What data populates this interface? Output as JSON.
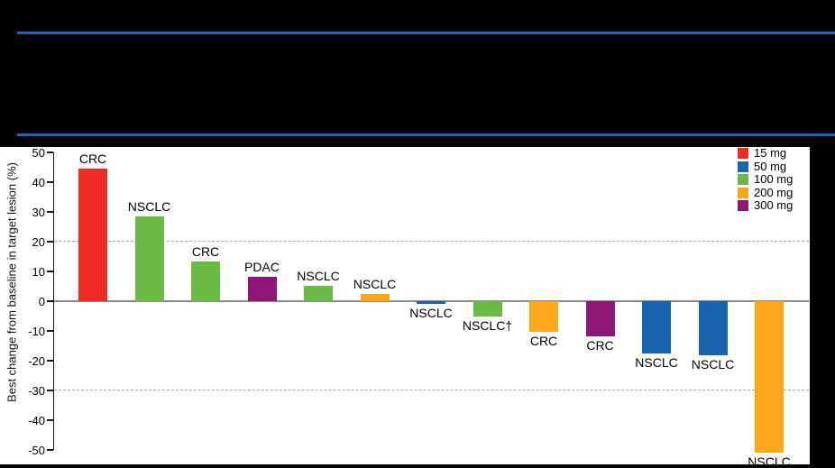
{
  "header": {
    "background": "#000000",
    "rule_top_color": "#2A62AC",
    "rule_bottom_color": "#0E6DB8"
  },
  "chart_data": {
    "type": "bar",
    "subtype": "waterfall",
    "title": "",
    "xlabel": "",
    "ylabel": "Best change from baseline in target lesion (%)",
    "ylim": [
      -50,
      50
    ],
    "yticks": [
      50,
      40,
      30,
      20,
      10,
      0,
      "-10",
      "-20",
      "-30",
      "-40",
      "-50"
    ],
    "ytick_values": [
      50,
      40,
      30,
      20,
      10,
      0,
      -10,
      -20,
      -30,
      -40,
      -50
    ],
    "reference_lines": [
      20,
      -30
    ],
    "grid": "off",
    "legend_position": "top-right",
    "categories": [
      "CRC",
      "NSCLC",
      "CRC",
      "PDAC",
      "NSCLC",
      "NSCLC",
      "NSCLC",
      "NSCLC†",
      "CRC",
      "CRC",
      "NSCLC",
      "NSCLC",
      "NSCLC"
    ],
    "values": [
      44.5,
      28.5,
      13.2,
      8.2,
      5.2,
      2.5,
      -1.0,
      -5.3,
      -10.2,
      -11.8,
      -17.6,
      -18.1,
      -51.0
    ],
    "bars": [
      {
        "label": "CRC",
        "dose": "15 mg",
        "value": 44.5
      },
      {
        "label": "NSCLC",
        "dose": "100 mg",
        "value": 28.5
      },
      {
        "label": "CRC",
        "dose": "100 mg",
        "value": 13.2
      },
      {
        "label": "PDAC",
        "dose": "300 mg",
        "value": 8.2
      },
      {
        "label": "NSCLC",
        "dose": "100 mg",
        "value": 5.2
      },
      {
        "label": "NSCLC",
        "dose": "200 mg",
        "value": 2.5
      },
      {
        "label": "NSCLC",
        "dose": "50 mg",
        "value": -1.0
      },
      {
        "label": "NSCLC†",
        "dose": "100 mg",
        "value": -5.3
      },
      {
        "label": "CRC",
        "dose": "200 mg",
        "value": -10.2
      },
      {
        "label": "CRC",
        "dose": "300 mg",
        "value": -11.8
      },
      {
        "label": "NSCLC",
        "dose": "50 mg",
        "value": -17.6
      },
      {
        "label": "NSCLC",
        "dose": "50 mg",
        "value": -18.1
      },
      {
        "label": "NSCLC",
        "dose": "200 mg",
        "value": -51.0
      }
    ],
    "legend": [
      {
        "label": "15 mg",
        "color": "#EE2C24"
      },
      {
        "label": "50 mg",
        "color": "#1A63AD"
      },
      {
        "label": "100 mg",
        "color": "#6CBA46"
      },
      {
        "label": "200 mg",
        "color": "#FAA71B"
      },
      {
        "label": "300 mg",
        "color": "#8E1677"
      }
    ],
    "dose_colors": {
      "15 mg": "#EE2C24",
      "50 mg": "#1A63AD",
      "100 mg": "#6CBA46",
      "200 mg": "#FAA71B",
      "300 mg": "#8E1677"
    }
  },
  "colors": {
    "axis": "#1a1a1a",
    "zero_line": "#8a8a8a",
    "dashed_reference": "#a9a9a9",
    "panel_background": "#ffffff"
  }
}
